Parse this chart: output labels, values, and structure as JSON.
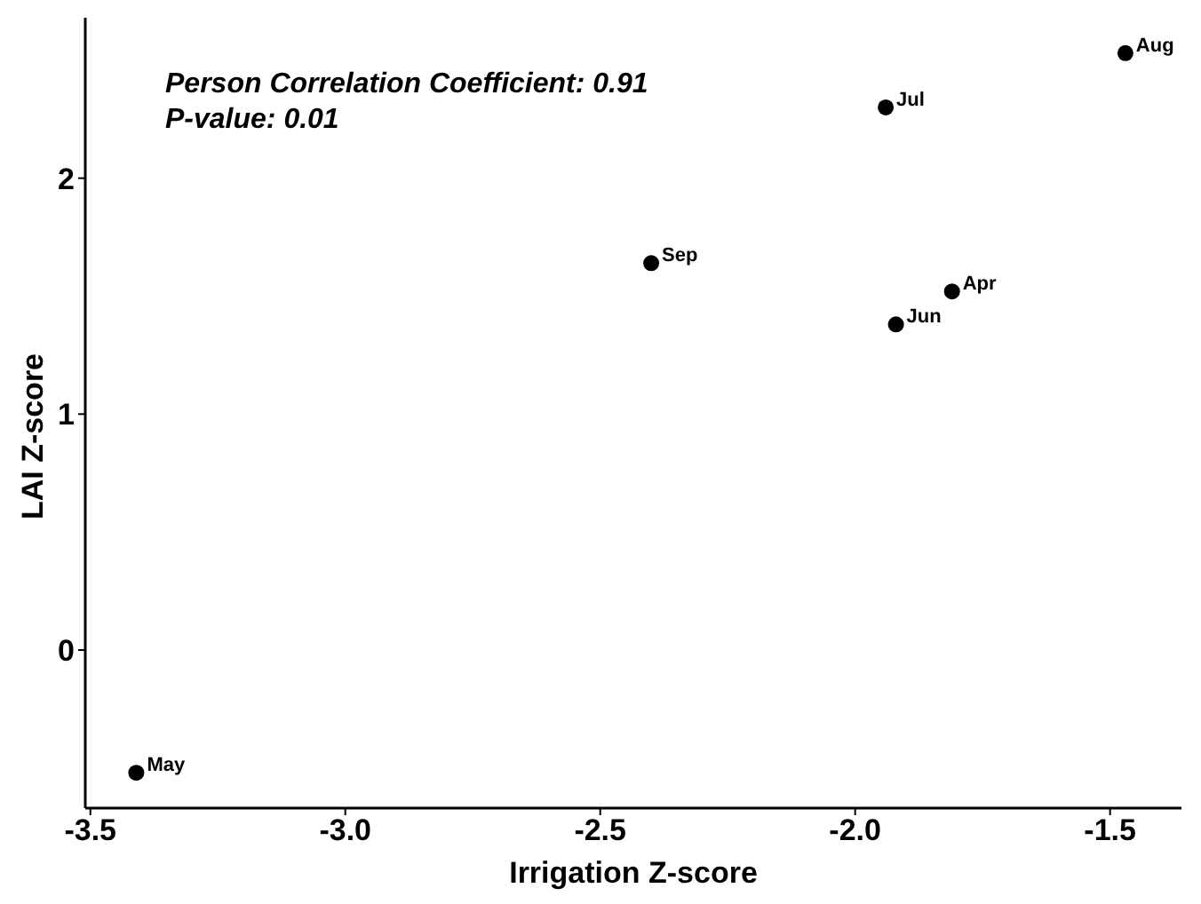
{
  "chart_data": {
    "type": "scatter",
    "xlabel": "Irrigation Z-score",
    "ylabel": "LAI Z-score",
    "x": [
      -1.81,
      -3.41,
      -1.92,
      -1.94,
      -1.47,
      -2.4
    ],
    "series": [
      {
        "color": "#000000",
        "values": [
          1.52,
          -0.52,
          1.38,
          2.3,
          2.53,
          1.64
        ]
      }
    ],
    "xlim": [
      -3.51,
      -1.36
    ],
    "xticks": [
      {
        "value": -3.5,
        "label": "-3.5"
      },
      {
        "value": -3.0,
        "label": "-3.0"
      },
      {
        "value": -2.5,
        "label": "-2.5"
      },
      {
        "value": -2.0,
        "label": "-2.0"
      },
      {
        "value": -1.5,
        "label": "-1.5"
      }
    ],
    "ylim": [
      -0.67,
      2.68
    ],
    "yticks": [
      0,
      1,
      2
    ],
    "grid": false,
    "legend": false,
    "marker": "circle",
    "annotations": [
      "Person Correlation Coefficient: 0.91",
      "P-value: 0.01",
      {
        "text": "Apr",
        "x": -1.81,
        "y": 1.52
      },
      {
        "text": "May",
        "x": -3.41,
        "y": -0.52
      },
      {
        "text": "Jun",
        "x": -1.92,
        "y": 1.38
      },
      {
        "text": "Jul",
        "x": -1.94,
        "y": 2.3
      },
      {
        "text": "Aug",
        "x": -1.47,
        "y": 2.53
      },
      {
        "text": "Sep",
        "x": -2.4,
        "y": 1.64
      }
    ]
  }
}
